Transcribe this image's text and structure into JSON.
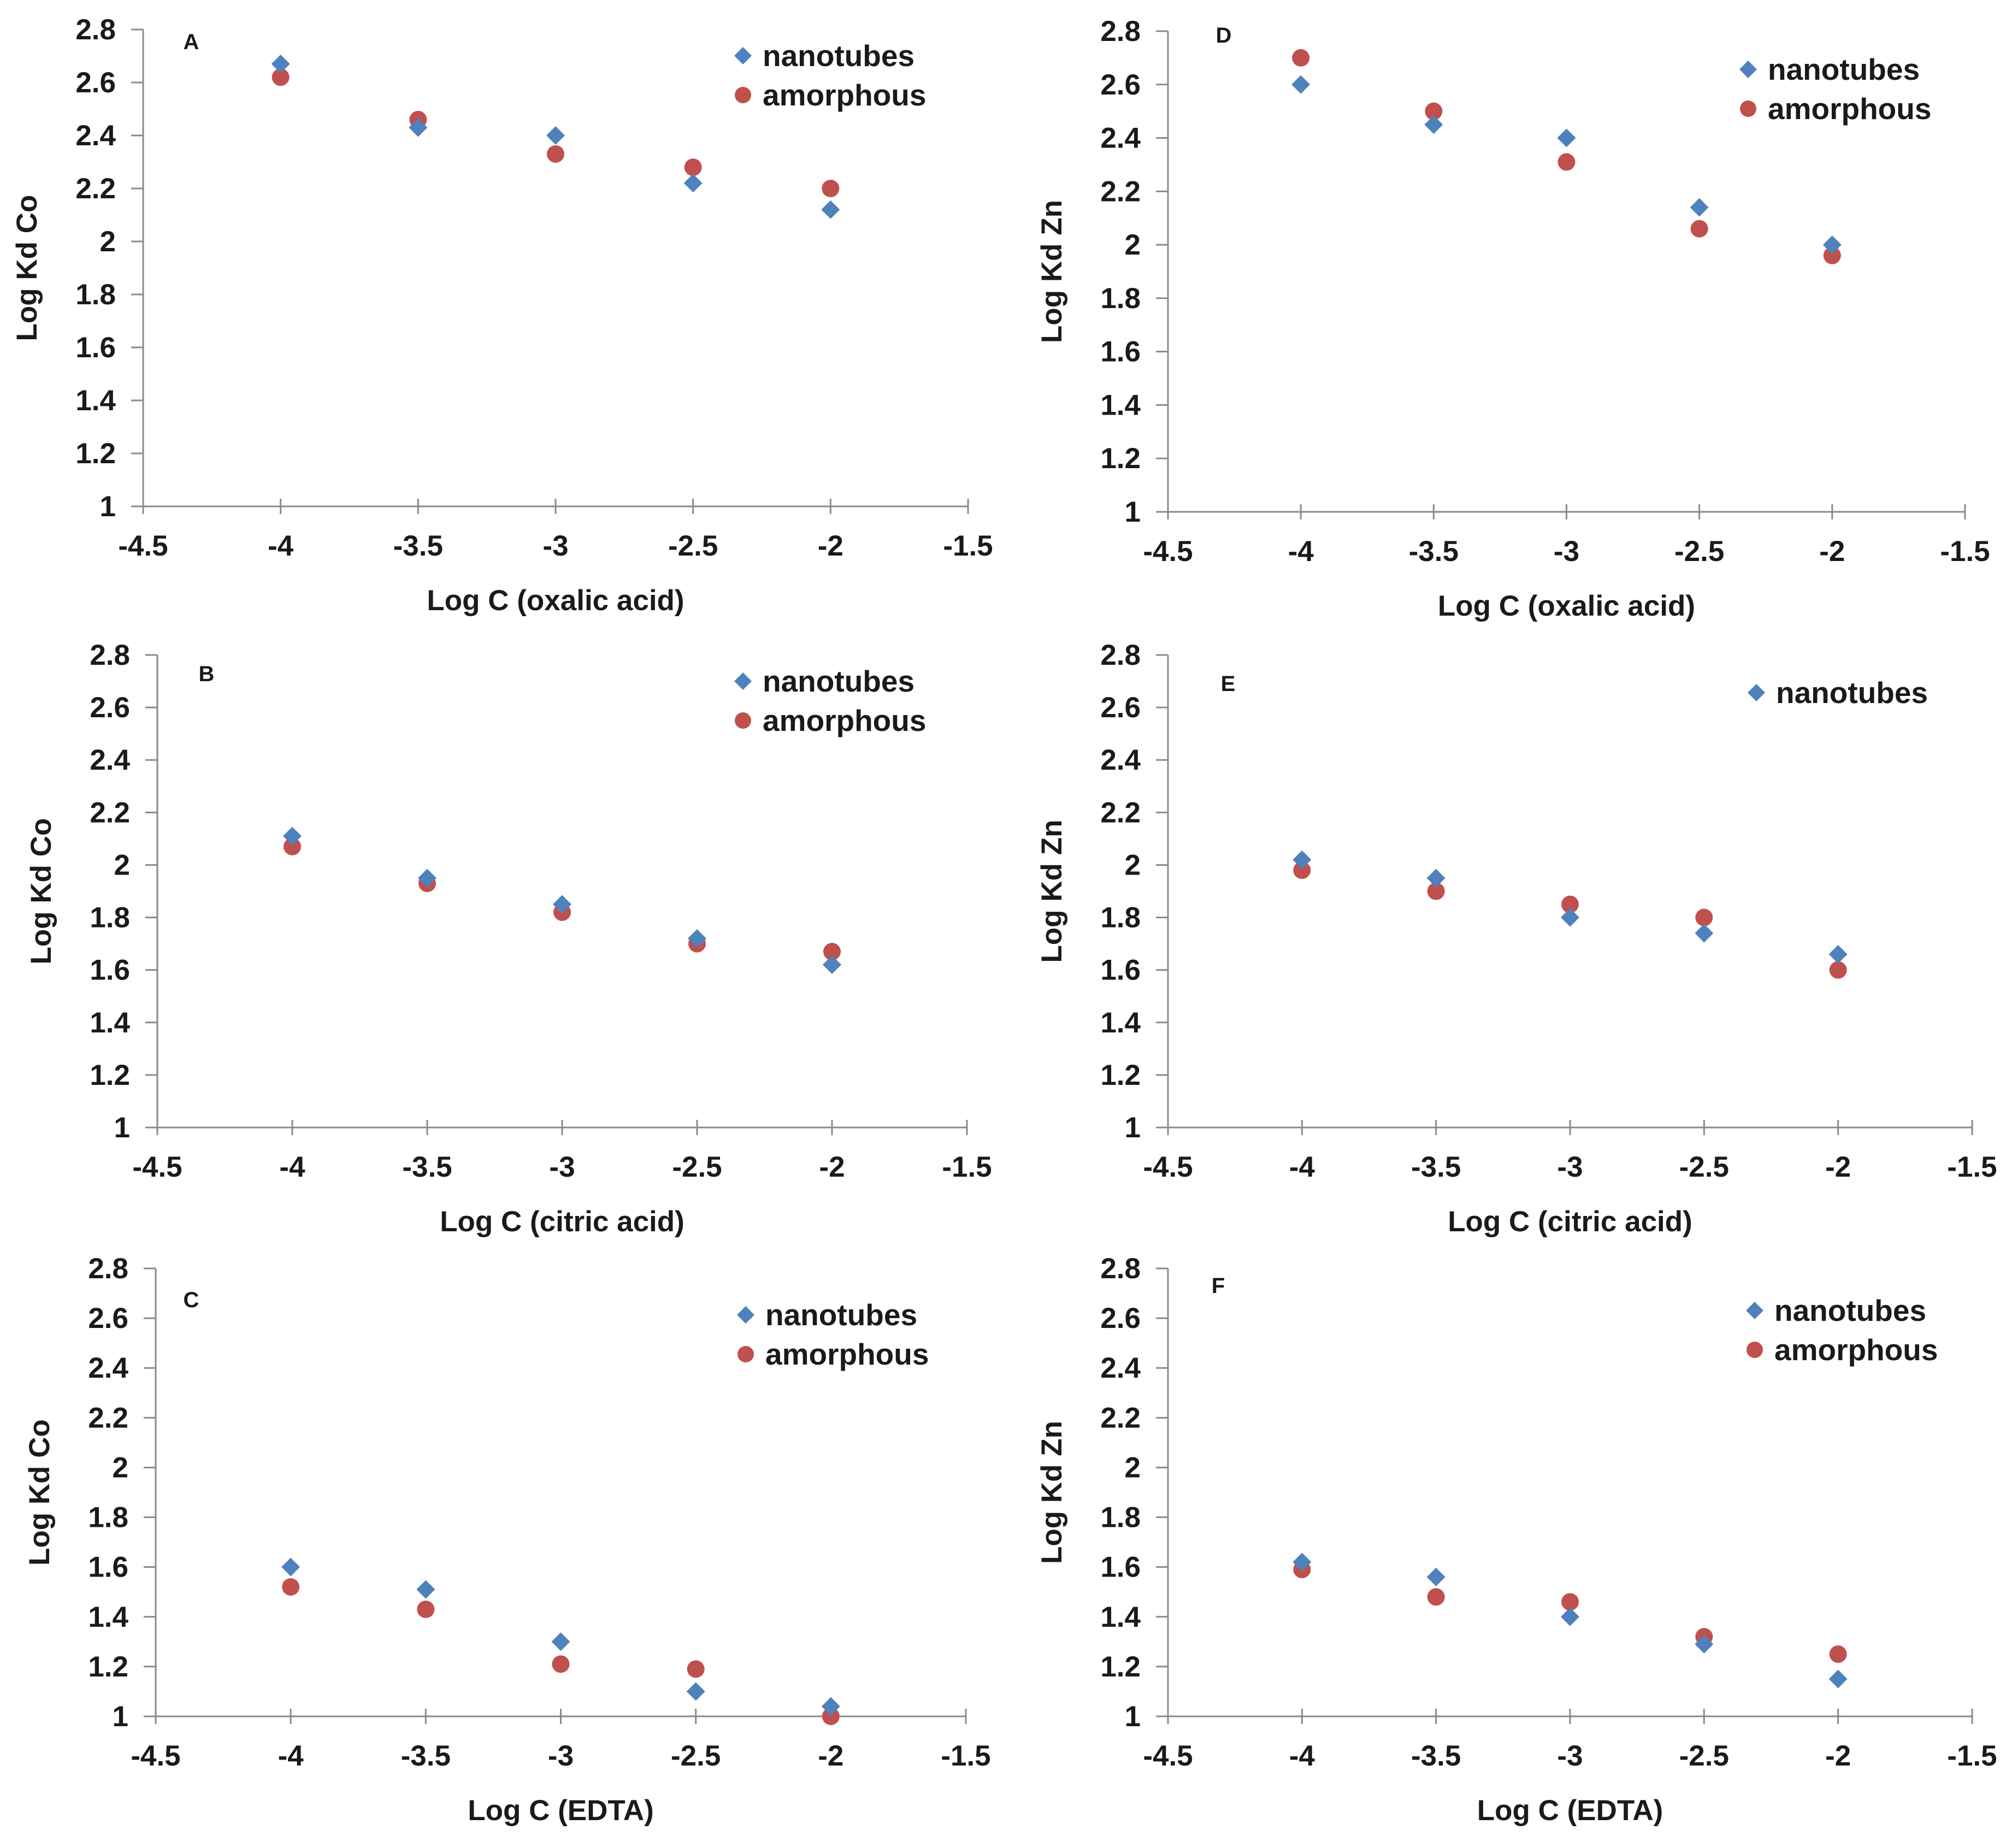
{
  "colors": {
    "nanotubes": "#4F81BD",
    "amorphous": "#C0504D"
  },
  "series_names": {
    "nanotubes": "nanotubes",
    "amorphous": "amorphous"
  },
  "chart_data": [
    {
      "id": "A",
      "type": "scatter",
      "letter": "A",
      "xlabel": "Log C (oxalic acid)",
      "ylabel": "Log Kd Co",
      "xlim": [
        -4.5,
        -1.5
      ],
      "ylim": [
        1,
        2.8
      ],
      "xticks": [
        "-4.5",
        "-4",
        "-3.5",
        "-3",
        "-2.5",
        "-2",
        "-1.5"
      ],
      "yticks": [
        "1",
        "1.2",
        "1.4",
        "1.6",
        "1.8",
        "2",
        "2.2",
        "2.4",
        "2.6",
        "2.8"
      ],
      "legend": [
        "nanotubes",
        "amorphous"
      ],
      "series": [
        {
          "name": "nanotubes",
          "marker": "diamond",
          "x": [
            -4,
            -3.5,
            -3,
            -2.5,
            -2
          ],
          "y": [
            2.67,
            2.43,
            2.4,
            2.22,
            2.12
          ]
        },
        {
          "name": "amorphous",
          "marker": "circle",
          "x": [
            -4,
            -3.5,
            -3,
            -2.5,
            -2
          ],
          "y": [
            2.62,
            2.46,
            2.33,
            2.28,
            2.2
          ]
        }
      ]
    },
    {
      "id": "D",
      "type": "scatter",
      "letter": "D",
      "xlabel": "Log C (oxalic acid)",
      "ylabel": "Log Kd Zn",
      "xlim": [
        -4.5,
        -1.5
      ],
      "ylim": [
        1,
        2.8
      ],
      "xticks": [
        "-4.5",
        "-4",
        "-3.5",
        "-3",
        "-2.5",
        "-2",
        "-1.5"
      ],
      "yticks": [
        "1",
        "1.2",
        "1.4",
        "1.6",
        "1.8",
        "2",
        "2.2",
        "2.4",
        "2.6",
        "2.8"
      ],
      "legend": [
        "nanotubes",
        "amorphous"
      ],
      "series": [
        {
          "name": "nanotubes",
          "marker": "diamond",
          "x": [
            -4,
            -3.5,
            -3,
            -2.5,
            -2
          ],
          "y": [
            2.6,
            2.45,
            2.4,
            2.14,
            2.0
          ]
        },
        {
          "name": "amorphous",
          "marker": "circle",
          "x": [
            -4,
            -3.5,
            -3,
            -2.5,
            -2
          ],
          "y": [
            2.7,
            2.5,
            2.31,
            2.06,
            1.96
          ]
        }
      ]
    },
    {
      "id": "B",
      "type": "scatter",
      "letter": "B",
      "xlabel": "Log C (citric acid)",
      "ylabel": "Log Kd Co",
      "xlim": [
        -4.5,
        -1.5
      ],
      "ylim": [
        1,
        2.8
      ],
      "xticks": [
        "-4.5",
        "-4",
        "-3.5",
        "-3",
        "-2.5",
        "-2",
        "-1.5"
      ],
      "yticks": [
        "1",
        "1.2",
        "1.4",
        "1.6",
        "1.8",
        "2",
        "2.2",
        "2.4",
        "2.6",
        "2.8"
      ],
      "legend": [
        "nanotubes",
        "amorphous"
      ],
      "series": [
        {
          "name": "nanotubes",
          "marker": "diamond",
          "x": [
            -4,
            -3.5,
            -3,
            -2.5,
            -2
          ],
          "y": [
            2.11,
            1.95,
            1.85,
            1.72,
            1.62
          ]
        },
        {
          "name": "amorphous",
          "marker": "circle",
          "x": [
            -4,
            -3.5,
            -3,
            -2.5,
            -2
          ],
          "y": [
            2.07,
            1.93,
            1.82,
            1.7,
            1.67
          ]
        }
      ]
    },
    {
      "id": "E",
      "type": "scatter",
      "letter": "E",
      "xlabel": "Log C (citric acid)",
      "ylabel": "Log Kd Zn",
      "xlim": [
        -4.5,
        -1.5
      ],
      "ylim": [
        1,
        2.8
      ],
      "xticks": [
        "-4.5",
        "-4",
        "-3.5",
        "-3",
        "-2.5",
        "-2",
        "-1.5"
      ],
      "yticks": [
        "1",
        "1.2",
        "1.4",
        "1.6",
        "1.8",
        "2",
        "2.2",
        "2.4",
        "2.6",
        "2.8"
      ],
      "legend": [
        "nanotubes"
      ],
      "series": [
        {
          "name": "nanotubes",
          "marker": "diamond",
          "x": [
            -4,
            -3.5,
            -3,
            -2.5,
            -2
          ],
          "y": [
            2.02,
            1.95,
            1.8,
            1.74,
            1.66
          ]
        },
        {
          "name": "amorphous",
          "marker": "circle",
          "x": [
            -4,
            -3.5,
            -3,
            -2.5,
            -2
          ],
          "y": [
            1.98,
            1.9,
            1.85,
            1.8,
            1.6
          ]
        }
      ]
    },
    {
      "id": "C",
      "type": "scatter",
      "letter": "C",
      "xlabel": "Log C (EDTA)",
      "ylabel": "Log Kd Co",
      "xlim": [
        -4.5,
        -1.5
      ],
      "ylim": [
        1,
        2.8
      ],
      "xticks": [
        "-4.5",
        "-4",
        "-3.5",
        "-3",
        "-2.5",
        "-2",
        "-1.5"
      ],
      "yticks": [
        "1",
        "1.2",
        "1.4",
        "1.6",
        "1.8",
        "2",
        "2.2",
        "2.4",
        "2.6",
        "2.8"
      ],
      "legend": [
        "nanotubes",
        "amorphous"
      ],
      "series": [
        {
          "name": "nanotubes",
          "marker": "diamond",
          "x": [
            -4,
            -3.5,
            -3,
            -2.5,
            -2
          ],
          "y": [
            1.6,
            1.51,
            1.3,
            1.1,
            1.04
          ]
        },
        {
          "name": "amorphous",
          "marker": "circle",
          "x": [
            -4,
            -3.5,
            -3,
            -2.5,
            -2
          ],
          "y": [
            1.52,
            1.43,
            1.21,
            1.19,
            1.0
          ]
        }
      ]
    },
    {
      "id": "F",
      "type": "scatter",
      "letter": "F",
      "xlabel": "Log C (EDTA)",
      "ylabel": "Log Kd Zn",
      "xlim": [
        -4.5,
        -1.5
      ],
      "ylim": [
        1,
        2.8
      ],
      "xticks": [
        "-4.5",
        "-4",
        "-3.5",
        "-3",
        "-2.5",
        "-2",
        "-1.5"
      ],
      "yticks": [
        "1",
        "1.2",
        "1.4",
        "1.6",
        "1.8",
        "2",
        "2.2",
        "2.4",
        "2.6",
        "2.8"
      ],
      "legend": [
        "nanotubes",
        "amorphous"
      ],
      "series": [
        {
          "name": "nanotubes",
          "marker": "diamond",
          "x": [
            -4,
            -3.5,
            -3,
            -2.5,
            -2
          ],
          "y": [
            1.62,
            1.56,
            1.4,
            1.29,
            1.15
          ]
        },
        {
          "name": "amorphous",
          "marker": "circle",
          "x": [
            -4,
            -3.5,
            -3,
            -2.5,
            -2
          ],
          "y": [
            1.59,
            1.48,
            1.46,
            1.32,
            1.25
          ]
        }
      ]
    }
  ]
}
